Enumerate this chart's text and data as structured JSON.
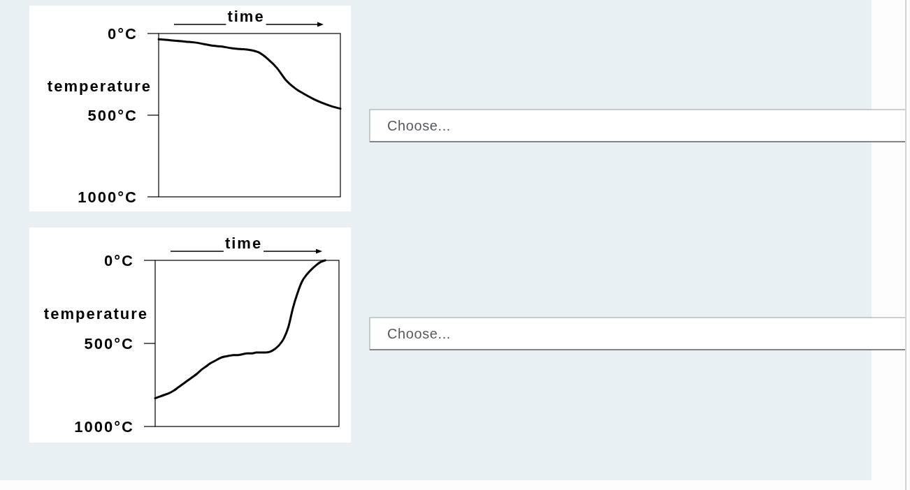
{
  "chart_data": [
    {
      "type": "line",
      "xlabel": "time",
      "ylabel": "temperature",
      "categories": [
        null,
        null,
        null,
        null,
        null,
        null,
        null,
        null,
        null,
        null,
        null,
        null,
        null,
        null,
        null,
        null,
        null,
        null,
        null,
        null,
        null
      ],
      "values": [
        35,
        40,
        45,
        50,
        55,
        65,
        75,
        80,
        90,
        95,
        100,
        115,
        155,
        210,
        285,
        335,
        370,
        400,
        425,
        445,
        460
      ],
      "color": "#000000",
      "ylim": [
        1000,
        0
      ],
      "yticks": [
        {
          "value": 0,
          "label": "0°C"
        },
        {
          "value": 500,
          "label": "500°C"
        },
        {
          "value": 1000,
          "label": "1000°C"
        }
      ]
    },
    {
      "type": "other",
      "annotations": [
        "Choose..."
      ]
    },
    {
      "type": "line",
      "xlabel": "time",
      "ylabel": "temperature",
      "categories": [
        null,
        null,
        null,
        null,
        null,
        null,
        null,
        null,
        null,
        null,
        null,
        null,
        null,
        null,
        null,
        null,
        null,
        null,
        null,
        null,
        null,
        null,
        null,
        null,
        null,
        null,
        null,
        null,
        null,
        null,
        null,
        null,
        null,
        null,
        null,
        null,
        null,
        null,
        null,
        null,
        null
      ],
      "values": [
        830,
        820,
        810,
        800,
        785,
        765,
        745,
        725,
        705,
        685,
        660,
        640,
        620,
        605,
        590,
        580,
        575,
        570,
        570,
        565,
        560,
        560,
        555,
        555,
        555,
        550,
        535,
        510,
        470,
        400,
        285,
        195,
        125,
        85,
        55,
        30,
        10,
        0,
        null,
        null,
        null
      ],
      "color": "#000000",
      "ylim": [
        1000,
        0
      ],
      "yticks": [
        {
          "value": 0,
          "label": "0°C"
        },
        {
          "value": 500,
          "label": "500°C"
        },
        {
          "value": 1000,
          "label": "1000°C"
        }
      ]
    },
    {
      "type": "other",
      "annotations": [
        "Choose..."
      ]
    }
  ]
}
